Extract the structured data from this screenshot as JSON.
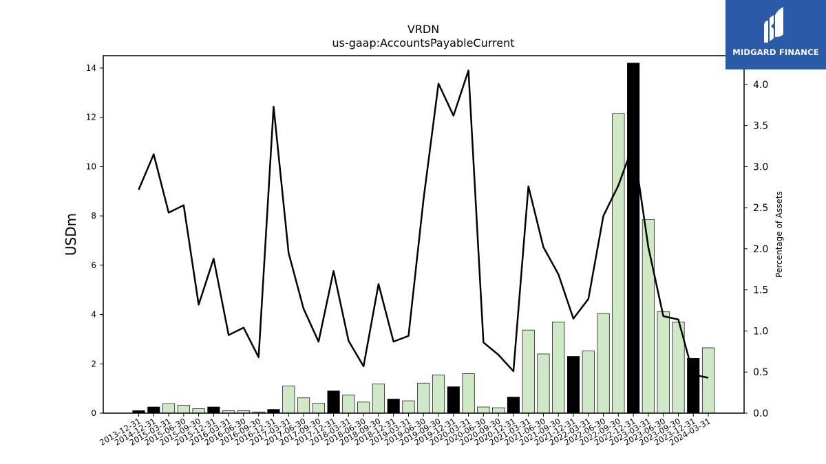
{
  "chart_data": {
    "type": "bar",
    "title": "VRDN",
    "subtitle": "us-gaap:AccountsPayableCurrent",
    "ylabel": "USDm",
    "y2label": "Percentage of Assets",
    "ylim": [
      0,
      14.5
    ],
    "y2lim": [
      0,
      4.35
    ],
    "yticks": [
      0,
      2,
      4,
      6,
      8,
      10,
      12,
      14
    ],
    "y2ticks": [
      0.0,
      0.5,
      1.0,
      1.5,
      2.0,
      2.5,
      3.0,
      3.5,
      4.0
    ],
    "categories": [
      "2013-12-31",
      "2014-12-31",
      "2015-03-31",
      "2015-06-30",
      "2015-09-30",
      "2015-12-31",
      "2016-03-31",
      "2016-06-30",
      "2016-09-30",
      "2016-12-31",
      "2017-03-31",
      "2017-06-30",
      "2017-09-30",
      "2017-12-31",
      "2018-03-31",
      "2018-06-30",
      "2018-09-30",
      "2018-12-31",
      "2019-03-31",
      "2019-06-30",
      "2019-09-30",
      "2019-12-31",
      "2020-03-31",
      "2020-06-30",
      "2020-09-30",
      "2020-12-31",
      "2021-03-31",
      "2021-06-30",
      "2021-09-30",
      "2021-12-31",
      "2022-03-31",
      "2022-06-30",
      "2022-09-30",
      "2022-12-31",
      "2023-03-31",
      "2023-06-30",
      "2023-09-30",
      "2023-12-31",
      "2024-03-31"
    ],
    "series": [
      {
        "kind": "bar",
        "values": [
          0.1,
          0.25,
          0.38,
          0.32,
          0.18,
          0.25,
          0.1,
          0.1,
          0.05,
          0.15,
          1.1,
          0.62,
          0.4,
          0.9,
          0.73,
          0.45,
          1.18,
          0.57,
          0.5,
          1.22,
          1.55,
          1.07,
          1.6,
          0.25,
          0.22,
          0.65,
          3.37,
          2.4,
          3.7,
          2.3,
          2.52,
          4.04,
          12.15,
          14.2,
          7.85,
          4.12,
          3.7,
          2.22,
          2.65
        ],
        "annual": [
          true,
          true,
          false,
          false,
          false,
          true,
          false,
          false,
          false,
          true,
          false,
          false,
          false,
          true,
          false,
          false,
          false,
          true,
          false,
          false,
          false,
          true,
          false,
          false,
          false,
          true,
          false,
          false,
          false,
          true,
          false,
          false,
          false,
          true,
          false,
          false,
          false,
          true,
          false
        ]
      },
      {
        "kind": "line",
        "axis": "right",
        "values": [
          2.72,
          3.15,
          2.44,
          2.53,
          1.32,
          1.88,
          0.95,
          1.04,
          0.68,
          3.73,
          1.95,
          1.27,
          0.87,
          1.73,
          0.88,
          0.57,
          1.57,
          0.87,
          0.94,
          2.6,
          4.01,
          3.62,
          4.17,
          0.86,
          0.71,
          0.51,
          2.76,
          2.02,
          1.69,
          1.15,
          1.39,
          2.4,
          2.77,
          3.27,
          2.02,
          1.18,
          1.14,
          0.47,
          0.43
        ]
      }
    ],
    "colors": {
      "quarter_bar": "#cfe9c6",
      "annual_bar": "#000000",
      "line": "#000000"
    },
    "grid": false
  },
  "logo": {
    "text": "MIDGARD FINANCE",
    "icon": "midgard-m-logo-icon"
  }
}
